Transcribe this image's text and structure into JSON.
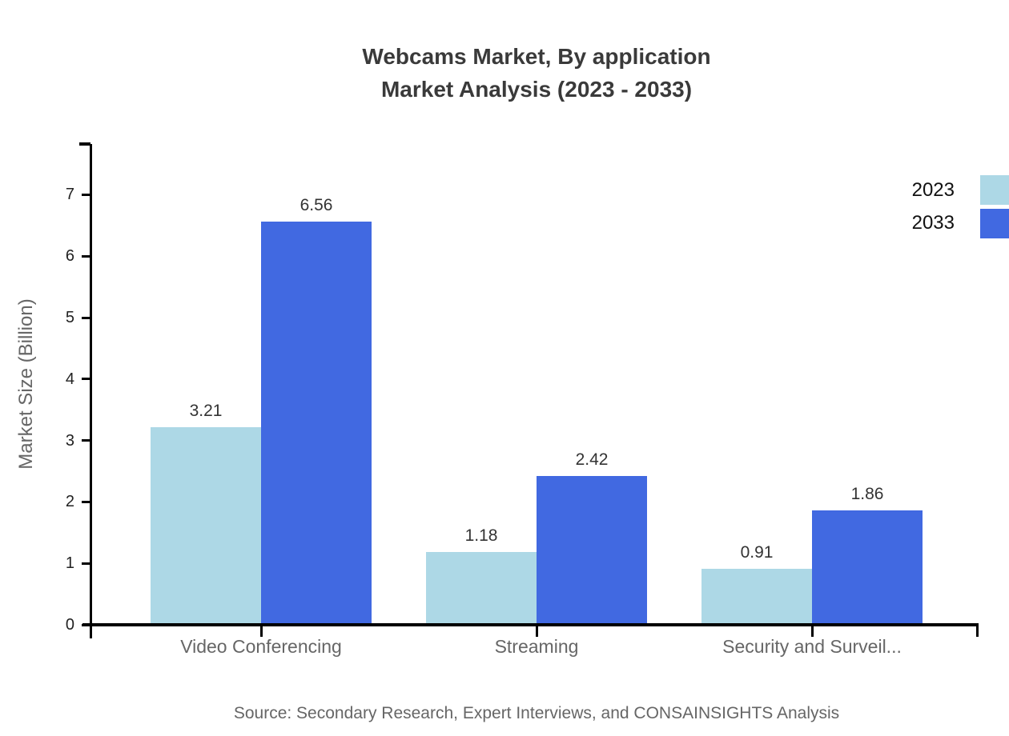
{
  "title": {
    "line1": "Webcams Market, By application",
    "line2": "Market Analysis (2023 - 2033)"
  },
  "chart_data": {
    "type": "bar",
    "categories": [
      "Video Conferencing",
      "Streaming",
      "Security and Surveil..."
    ],
    "series": [
      {
        "name": "2023",
        "color": "#ADD8E6",
        "values": [
          3.21,
          1.18,
          0.91
        ]
      },
      {
        "name": "2033",
        "color": "#4169E1",
        "values": [
          6.56,
          2.42,
          1.86
        ]
      }
    ],
    "value_labels": [
      [
        "3.21",
        "1.18",
        "0.91"
      ],
      [
        "6.56",
        "2.42",
        "1.86"
      ]
    ],
    "ylabel": "Market Size (Billion)",
    "xlabel": "",
    "yticks": [
      0,
      1,
      2,
      3,
      4,
      5,
      6,
      7
    ],
    "ylim": [
      0,
      7.8
    ],
    "grid": false,
    "legend_position": "top-right",
    "bar_label_position": "above"
  },
  "source": "Source: Secondary Research, Expert Interviews, and CONSAINSIGHTS Analysis",
  "colors": {
    "series_2023": "#ADD8E6",
    "series_2033": "#4169E1",
    "axis": "#000000",
    "title_text": "#3a3a3a",
    "value_text": "#333333",
    "muted_text": "#666666"
  }
}
